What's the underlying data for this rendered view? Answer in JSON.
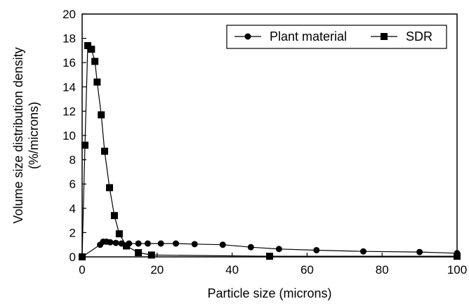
{
  "chart_data": {
    "type": "line",
    "xlabel": "Particle size (microns)",
    "ylabel_lines": [
      "Volume size distribution density",
      "(%/microns)"
    ],
    "xlim": [
      0,
      100
    ],
    "ylim": [
      0,
      20
    ],
    "xticks": [
      0,
      20,
      40,
      60,
      80,
      100
    ],
    "yticks": [
      0,
      2,
      4,
      6,
      8,
      10,
      12,
      14,
      16,
      18,
      20
    ],
    "grid": false,
    "legend_position": "top-right",
    "series": [
      {
        "name": "Plant material",
        "marker": "circle",
        "x": [
          0,
          4.8,
          5.6,
          6.5,
          7.5,
          9.0,
          10.5,
          12.5,
          15,
          17.5,
          21,
          25,
          30,
          37.5,
          45,
          52.5,
          62.5,
          75,
          90,
          100
        ],
        "y": [
          0,
          1.0,
          1.25,
          1.25,
          1.2,
          1.15,
          1.1,
          1.1,
          1.1,
          1.1,
          1.1,
          1.1,
          1.05,
          1.0,
          0.8,
          0.65,
          0.55,
          0.45,
          0.4,
          0.3
        ]
      },
      {
        "name": "SDR",
        "marker": "square",
        "x": [
          0,
          0.75,
          1.5,
          2.5,
          3.4,
          4.0,
          5.1,
          6.0,
          7.3,
          8.6,
          9.9,
          11.8,
          15,
          18.5,
          50,
          100
        ],
        "y": [
          0,
          9.2,
          17.4,
          17.1,
          16.1,
          14.4,
          11.7,
          8.7,
          5.7,
          3.4,
          1.9,
          0.9,
          0.35,
          0.15,
          0.05,
          0.05
        ]
      }
    ]
  }
}
